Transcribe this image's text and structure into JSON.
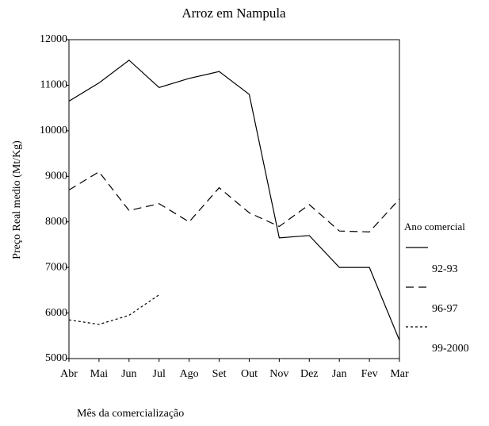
{
  "chart_data": {
    "type": "line",
    "title": "Arroz em Nampula",
    "xlabel": "Mês da comercialização",
    "ylabel": "Preço Real medio (Mt/Kg)",
    "categories": [
      "Abr",
      "Mai",
      "Jun",
      "Jul",
      "Ago",
      "Set",
      "Out",
      "Nov",
      "Dez",
      "Jan",
      "Fev",
      "Mar"
    ],
    "legend_title": "Ano comercial",
    "legend": "right",
    "series": [
      {
        "name": "92-93",
        "color": "#000000",
        "linestyle": "solid",
        "values": [
          10650,
          11050,
          11550,
          10950,
          11150,
          11300,
          10800,
          7650,
          7700,
          7000,
          7000,
          5400
        ]
      },
      {
        "name": "96-97",
        "color": "#000000",
        "linestyle": "dashed",
        "values": [
          8700,
          9100,
          8250,
          8400,
          8000,
          8750,
          8200,
          7900,
          8380,
          7800,
          7780,
          8500
        ]
      },
      {
        "name": "99-2000",
        "color": "#000000",
        "linestyle": "dotted",
        "values": [
          5850,
          5750,
          5950,
          6400,
          null,
          null,
          null,
          null,
          null,
          null,
          null,
          null
        ]
      }
    ],
    "ylim": [
      5000,
      12000
    ],
    "yticks": [
      5000,
      6000,
      7000,
      8000,
      9000,
      10000,
      11000,
      12000
    ]
  }
}
